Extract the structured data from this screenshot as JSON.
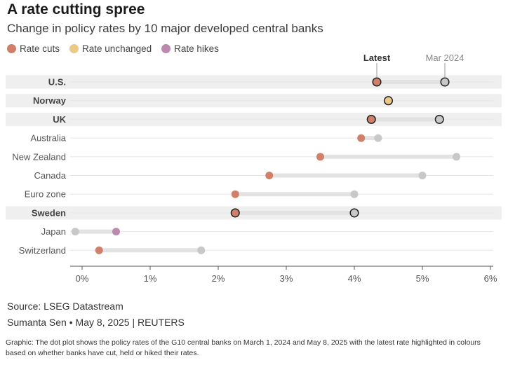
{
  "header": {
    "title": "A rate cutting spree",
    "subtitle": "Change in policy rates by 10 major developed central banks"
  },
  "legend": {
    "items": [
      {
        "label": "Rate cuts",
        "color": "#d08068"
      },
      {
        "label": "Rate unchanged",
        "color": "#ebc986"
      },
      {
        "label": "Rate hikes",
        "color": "#ba8aaf"
      }
    ]
  },
  "footer": {
    "source": "Source: LSEG Datastream",
    "byline": "Sumanta Sen • May 8, 2025 | REUTERS",
    "note": "Graphic: The dot plot shows the policy rates of the G10 central banks on March 1, 2024 and May 8, 2025 with the latest rate highlighted in colours based on whether banks have cut, held or hiked their rates."
  },
  "chart_data": {
    "type": "dot_plot",
    "x_unit": "%",
    "xlim": [
      -0.15,
      6.1
    ],
    "x_ticks": [
      0,
      1,
      2,
      3,
      4,
      5,
      6
    ],
    "x_tick_labels": [
      "0%",
      "1%",
      "2%",
      "3%",
      "4%",
      "5%",
      "6%"
    ],
    "annotations": {
      "latest_label": "Latest",
      "previous_label": "Mar 2024"
    },
    "colors": {
      "cut": "#d08068",
      "unchanged": "#ebc986",
      "hike": "#ba8aaf",
      "previous": "#c8c8c8",
      "connector": "#e2e2e2",
      "highlight_band": "#efefef"
    },
    "rows": [
      {
        "name": "U.S.",
        "previous": 5.33,
        "latest": 4.33,
        "change": "cut",
        "highlighted": true
      },
      {
        "name": "Norway",
        "previous": 4.5,
        "latest": 4.5,
        "change": "unchanged",
        "highlighted": true
      },
      {
        "name": "UK",
        "previous": 5.25,
        "latest": 4.25,
        "change": "cut",
        "highlighted": true
      },
      {
        "name": "Australia",
        "previous": 4.35,
        "latest": 4.1,
        "change": "cut",
        "highlighted": false
      },
      {
        "name": "New Zealand",
        "previous": 5.5,
        "latest": 3.5,
        "change": "cut",
        "highlighted": false
      },
      {
        "name": "Canada",
        "previous": 5.0,
        "latest": 2.75,
        "change": "cut",
        "highlighted": false
      },
      {
        "name": "Euro zone",
        "previous": 4.0,
        "latest": 2.25,
        "change": "cut",
        "highlighted": false
      },
      {
        "name": "Sweden",
        "previous": 4.0,
        "latest": 2.25,
        "change": "cut",
        "highlighted": true
      },
      {
        "name": "Japan",
        "previous": -0.1,
        "latest": 0.5,
        "change": "hike",
        "highlighted": false
      },
      {
        "name": "Switzerland",
        "previous": 1.75,
        "latest": 0.25,
        "change": "cut",
        "highlighted": false
      }
    ]
  }
}
